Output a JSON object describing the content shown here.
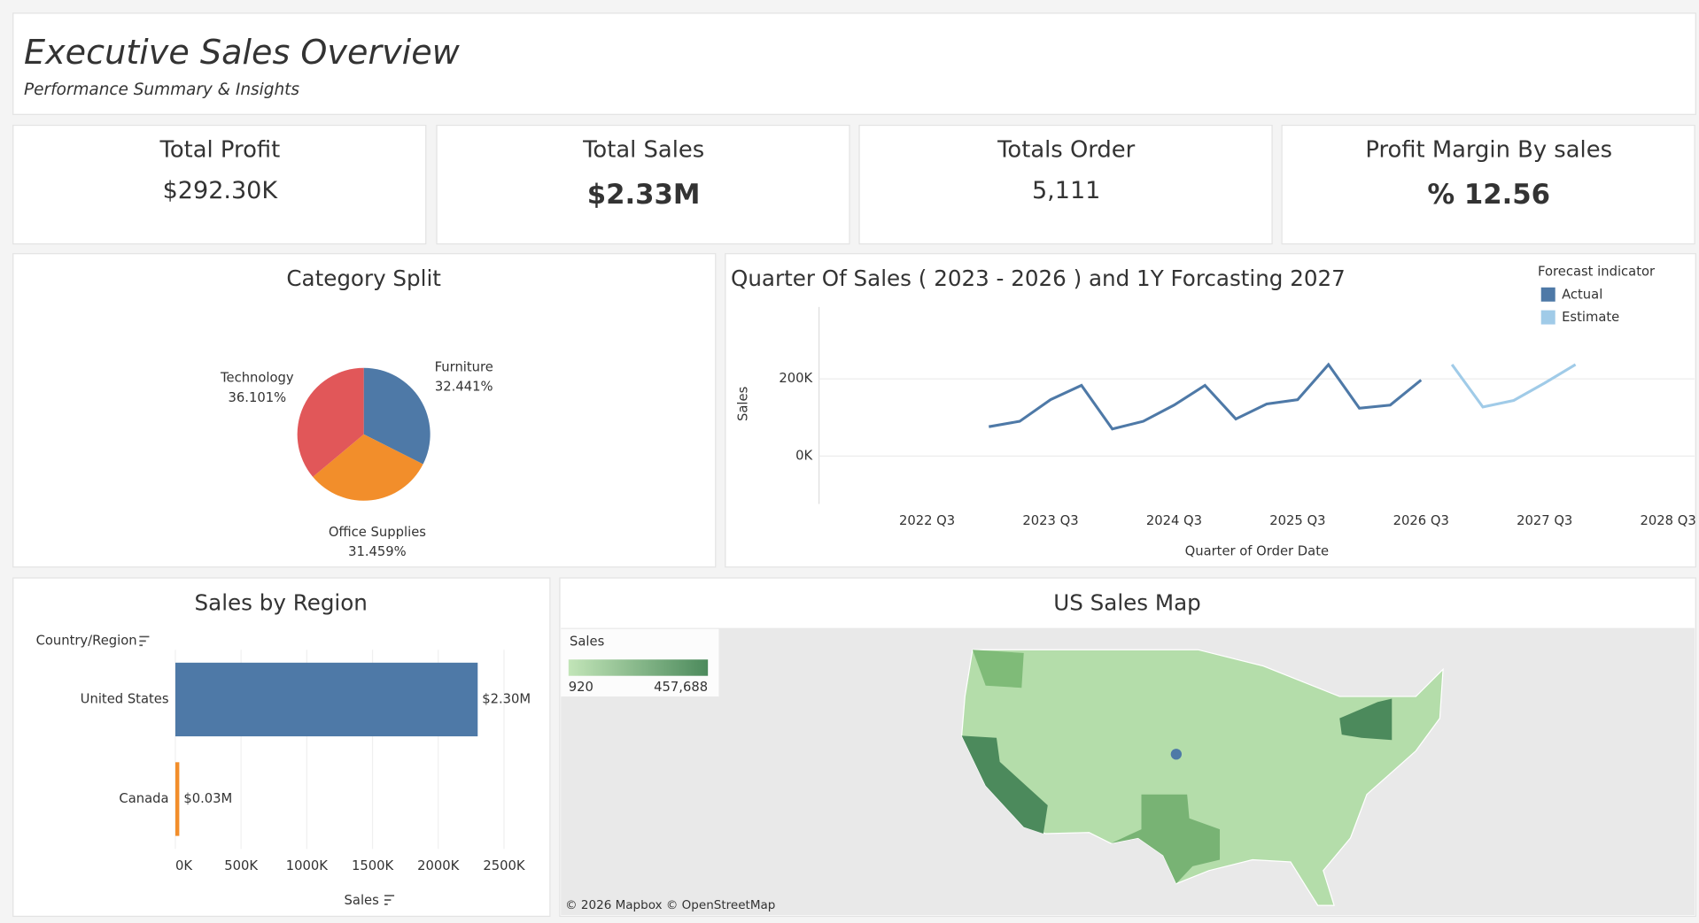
{
  "header": {
    "title": "Executive Sales Overview",
    "subtitle": "Performance Summary & Insights"
  },
  "kpis": [
    {
      "label": "Total Profit",
      "value": "$292.30K"
    },
    {
      "label": "Total Sales",
      "value": "$2.33M"
    },
    {
      "label": "Totals Order",
      "value": "5,111"
    },
    {
      "label": "Profit Margin By sales",
      "value": "% 12.56"
    }
  ],
  "chart_data": [
    {
      "type": "pie",
      "title": "Category Split",
      "categories": [
        "Furniture",
        "Office Supplies",
        "Technology"
      ],
      "values": [
        32.441,
        31.459,
        36.101
      ],
      "value_labels": [
        "32.441%",
        "31.459%",
        "36.101%"
      ],
      "colors": [
        "#4e79a7",
        "#f28e2b",
        "#e15759"
      ]
    },
    {
      "type": "line",
      "title": "Quarter Of Sales ( 2023 - 2026 ) and 1Y Forcasting 2027",
      "x_label": "Quarter of Order Date",
      "y_label": "Sales",
      "legend_title": "Forecast indicator",
      "xlim": [
        2021.625,
        2028.75
      ],
      "xticks": [
        {
          "value": 2022.5,
          "label": "2022 Q3"
        },
        {
          "value": 2023.5,
          "label": "2023 Q3"
        },
        {
          "value": 2024.5,
          "label": "2024 Q3"
        },
        {
          "value": 2025.5,
          "label": "2025 Q3"
        },
        {
          "value": 2026.5,
          "label": "2026 Q3"
        },
        {
          "value": 2027.5,
          "label": "2027 Q3"
        },
        {
          "value": 2028.5,
          "label": "2028 Q3"
        }
      ],
      "ylim": [
        -124000,
        386000
      ],
      "yticks": [
        {
          "value": 0,
          "label": "0K"
        },
        {
          "value": 200000,
          "label": "200K"
        }
      ],
      "grid": true,
      "series": [
        {
          "name": "Actual",
          "color": "#4e79a7",
          "x": [
            2023,
            2023.25,
            2023.5,
            2023.75,
            2024,
            2024.25,
            2024.5,
            2024.75,
            2025,
            2025.25,
            2025.5,
            2025.75,
            2026,
            2026.25,
            2026.5
          ],
          "values": [
            76000,
            90000,
            146000,
            183000,
            70000,
            90000,
            132000,
            183000,
            96000,
            135000,
            146000,
            237000,
            124000,
            132000,
            197000
          ]
        },
        {
          "name": "Estimate",
          "color": "#a0cbe8",
          "x": [
            2026.75,
            2027,
            2027.25,
            2027.5,
            2027.75
          ],
          "values": [
            237000,
            127000,
            144000,
            189000,
            237000
          ]
        }
      ]
    },
    {
      "type": "hbar",
      "title": "Sales by Region",
      "y_label": "Country/Region",
      "x_label": "Sales",
      "categories": [
        "United States",
        "Canada"
      ],
      "values": [
        2300000,
        30000
      ],
      "value_labels": [
        "$2.30M",
        "$0.03M"
      ],
      "colors": [
        "#4e79a7",
        "#f28e2b"
      ],
      "xlim": [
        0,
        2850000
      ],
      "xticks": [
        {
          "value": 0,
          "label": "0K"
        },
        {
          "value": 500000,
          "label": "500K"
        },
        {
          "value": 1000000,
          "label": "1000K"
        },
        {
          "value": 1500000,
          "label": "1500K"
        },
        {
          "value": 2000000,
          "label": "2000K"
        },
        {
          "value": 2500000,
          "label": "2500K"
        }
      ],
      "grid": true
    },
    {
      "type": "map",
      "title": "US Sales Map",
      "legend_title": "Sales",
      "legend_ticks": [
        920,
        {
          "value": 457688,
          "label": "457,688"
        }
      ],
      "colors": [
        "#c2e5b8",
        "#4c8a5c"
      ],
      "attribution": "© 2026 Mapbox © OpenStreetMap"
    }
  ]
}
